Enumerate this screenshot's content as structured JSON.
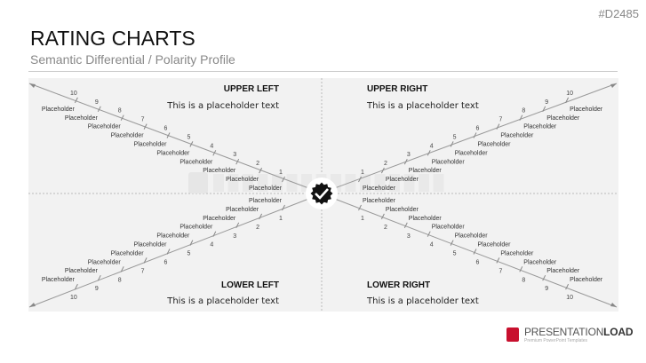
{
  "slide_code": "#D2485",
  "title": "RATING CHARTS",
  "subtitle": "Semantic Differential / Polarity Profile",
  "watermark": "PRESENTATIONLOAD",
  "center_icon": "verified-badge-check-icon",
  "quadrants": [
    {
      "key": "upper-left",
      "heading": "UPPER LEFT",
      "text": "This is a placeholder text",
      "numbers": [
        "1",
        "2",
        "3",
        "4",
        "5",
        "6",
        "7",
        "8",
        "9",
        "10"
      ],
      "labels": [
        "Placeholder",
        "Placeholder",
        "Placeholder",
        "Placeholder",
        "Placeholder",
        "Placeholder",
        "Placeholder",
        "Placeholder",
        "Placeholder",
        "Placeholder"
      ]
    },
    {
      "key": "upper-right",
      "heading": "UPPER RIGHT",
      "text": "This is a placeholder text",
      "numbers": [
        "1",
        "2",
        "3",
        "4",
        "5",
        "6",
        "7",
        "8",
        "9",
        "10"
      ],
      "labels": [
        "Placeholder",
        "Placeholder",
        "Placeholder",
        "Placeholder",
        "Placeholder",
        "Placeholder",
        "Placeholder",
        "Placeholder",
        "Placeholder",
        "Placeholder"
      ]
    },
    {
      "key": "lower-left",
      "heading": "LOWER LEFT",
      "text": "This is a placeholder text",
      "numbers": [
        "1",
        "2",
        "3",
        "4",
        "5",
        "6",
        "7",
        "8",
        "9",
        "10"
      ],
      "labels": [
        "Placeholder",
        "Placeholder",
        "Placeholder",
        "Placeholder",
        "Placeholder",
        "Placeholder",
        "Placeholder",
        "Placeholder",
        "Placeholder",
        "Placeholder"
      ]
    },
    {
      "key": "lower-right",
      "heading": "LOWER RIGHT",
      "text": "This is a placeholder text",
      "numbers": [
        "1",
        "2",
        "3",
        "4",
        "5",
        "6",
        "7",
        "8",
        "9",
        "10"
      ],
      "labels": [
        "Placeholder",
        "Placeholder",
        "Placeholder",
        "Placeholder",
        "Placeholder",
        "Placeholder",
        "Placeholder",
        "Placeholder",
        "Placeholder",
        "Placeholder"
      ]
    }
  ],
  "logo": {
    "brand_light": "PRESENTATION",
    "brand_bold": "LOAD",
    "tagline": "Premium PowerPoint Templates"
  }
}
